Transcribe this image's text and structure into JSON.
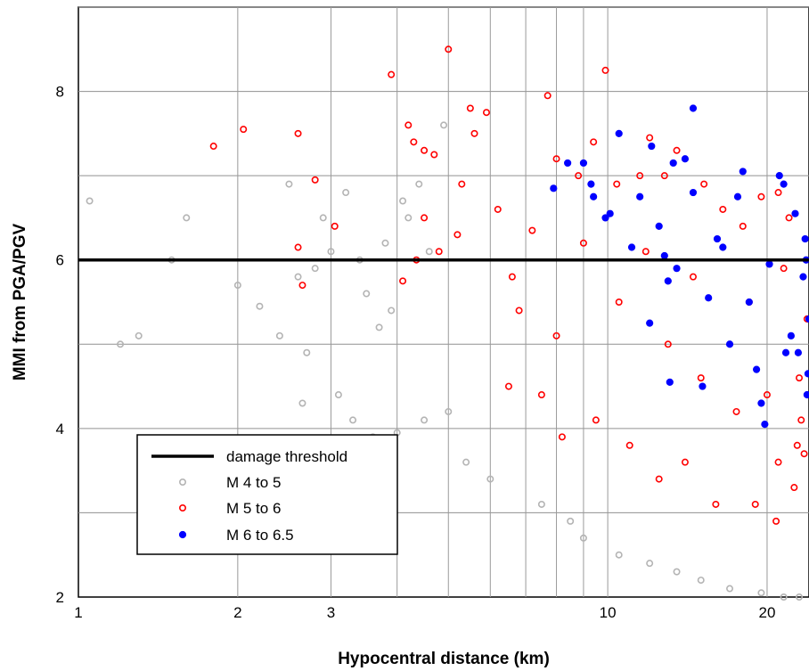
{
  "chart_data": {
    "type": "scatter",
    "title": "",
    "xlabel": "Hypocentral distance (km)",
    "ylabel": "MMI from PGA/PGV",
    "x_scale": "log",
    "xlim": [
      1,
      24
    ],
    "ylim": [
      2,
      9
    ],
    "x_ticks": [
      1,
      2,
      3,
      10,
      20
    ],
    "x_tick_labels": [
      "1",
      "2",
      "3",
      "10",
      "20"
    ],
    "y_ticks": [
      2,
      4,
      6,
      8
    ],
    "y_tick_labels": [
      "2",
      "4",
      "6",
      "8"
    ],
    "grid": true,
    "legend_position": "bottom-left",
    "threshold": {
      "name": "damage threshold",
      "y": 6,
      "color": "#000000"
    },
    "series": [
      {
        "name": "M 4 to 5",
        "color": "#b4b4b4",
        "marker": "open-circle",
        "points": [
          [
            1.05,
            6.7
          ],
          [
            1.2,
            5.0
          ],
          [
            1.3,
            5.1
          ],
          [
            1.5,
            6.0
          ],
          [
            1.6,
            6.5
          ],
          [
            2.0,
            5.7
          ],
          [
            2.2,
            5.45
          ],
          [
            2.4,
            5.1
          ],
          [
            2.5,
            6.9
          ],
          [
            2.6,
            5.8
          ],
          [
            2.8,
            5.9
          ],
          [
            2.9,
            6.5
          ],
          [
            3.0,
            6.1
          ],
          [
            3.2,
            6.8
          ],
          [
            3.4,
            6.0
          ],
          [
            3.5,
            5.6
          ],
          [
            3.7,
            5.2
          ],
          [
            3.9,
            5.4
          ],
          [
            4.2,
            6.5
          ],
          [
            4.4,
            6.9
          ],
          [
            4.6,
            6.1
          ],
          [
            4.9,
            7.6
          ],
          [
            5.0,
            4.2
          ],
          [
            2.7,
            4.9
          ],
          [
            3.1,
            4.4
          ],
          [
            3.3,
            4.1
          ],
          [
            3.6,
            3.9
          ],
          [
            4.0,
            3.95
          ],
          [
            4.5,
            4.1
          ],
          [
            5.4,
            3.6
          ],
          [
            6.0,
            3.4
          ],
          [
            7.5,
            3.1
          ],
          [
            8.5,
            2.9
          ],
          [
            9.0,
            2.7
          ],
          [
            10.5,
            2.5
          ],
          [
            12.0,
            2.4
          ],
          [
            13.5,
            2.3
          ],
          [
            15.0,
            2.2
          ],
          [
            17.0,
            2.1
          ],
          [
            19.5,
            2.05
          ],
          [
            21.5,
            2.0
          ],
          [
            23.0,
            2.0
          ],
          [
            2.65,
            4.3
          ],
          [
            4.1,
            6.7
          ],
          [
            3.8,
            6.2
          ]
        ]
      },
      {
        "name": "M 5 to 6",
        "color": "#ff0000",
        "marker": "open-circle",
        "points": [
          [
            1.8,
            7.35
          ],
          [
            2.05,
            7.55
          ],
          [
            2.6,
            7.5
          ],
          [
            2.8,
            6.95
          ],
          [
            2.6,
            6.15
          ],
          [
            2.65,
            5.7
          ],
          [
            3.05,
            6.4
          ],
          [
            3.9,
            8.2
          ],
          [
            4.2,
            7.6
          ],
          [
            4.3,
            7.4
          ],
          [
            4.5,
            7.3
          ],
          [
            4.7,
            7.25
          ],
          [
            5.0,
            8.5
          ],
          [
            5.5,
            7.8
          ],
          [
            5.9,
            7.75
          ],
          [
            5.6,
            7.5
          ],
          [
            7.7,
            7.95
          ],
          [
            9.9,
            8.25
          ],
          [
            4.1,
            5.75
          ],
          [
            4.35,
            6.0
          ],
          [
            4.5,
            6.5
          ],
          [
            4.8,
            6.1
          ],
          [
            5.3,
            6.9
          ],
          [
            6.2,
            6.6
          ],
          [
            6.6,
            5.8
          ],
          [
            7.2,
            6.35
          ],
          [
            8.0,
            7.2
          ],
          [
            8.8,
            7.0
          ],
          [
            9.4,
            7.4
          ],
          [
            10.4,
            6.9
          ],
          [
            11.5,
            7.0
          ],
          [
            12.0,
            7.45
          ],
          [
            12.8,
            7.0
          ],
          [
            13.5,
            7.3
          ],
          [
            15.2,
            6.9
          ],
          [
            16.5,
            6.6
          ],
          [
            18.0,
            6.4
          ],
          [
            19.5,
            6.75
          ],
          [
            21.0,
            6.8
          ],
          [
            22.0,
            6.5
          ],
          [
            6.5,
            4.5
          ],
          [
            7.5,
            4.4
          ],
          [
            8.2,
            3.9
          ],
          [
            9.5,
            4.1
          ],
          [
            11.0,
            3.8
          ],
          [
            12.5,
            3.4
          ],
          [
            14.0,
            3.6
          ],
          [
            16.0,
            3.1
          ],
          [
            19.0,
            3.1
          ],
          [
            20.8,
            2.9
          ],
          [
            22.5,
            3.3
          ],
          [
            23.5,
            3.7
          ],
          [
            23.0,
            4.6
          ],
          [
            23.8,
            5.3
          ],
          [
            8.0,
            5.1
          ],
          [
            10.5,
            5.5
          ],
          [
            13.0,
            5.0
          ],
          [
            15.0,
            4.6
          ],
          [
            17.5,
            4.2
          ],
          [
            20.0,
            4.4
          ],
          [
            5.2,
            6.3
          ],
          [
            6.8,
            5.4
          ],
          [
            9.0,
            6.2
          ],
          [
            11.8,
            6.1
          ],
          [
            14.5,
            5.8
          ],
          [
            18.5,
            5.5
          ],
          [
            21.5,
            5.9
          ],
          [
            23.2,
            4.1
          ],
          [
            22.8,
            3.8
          ],
          [
            21.0,
            3.6
          ]
        ]
      },
      {
        "name": "M 6 to 6.5",
        "color": "#0000ff",
        "marker": "filled-circle",
        "points": [
          [
            7.9,
            6.85
          ],
          [
            8.4,
            7.15
          ],
          [
            9.0,
            7.15
          ],
          [
            9.3,
            6.9
          ],
          [
            9.4,
            6.75
          ],
          [
            9.9,
            6.5
          ],
          [
            10.1,
            6.55
          ],
          [
            10.5,
            7.5
          ],
          [
            11.1,
            6.15
          ],
          [
            11.5,
            6.75
          ],
          [
            12.1,
            7.35
          ],
          [
            12.5,
            6.4
          ],
          [
            12.8,
            6.05
          ],
          [
            13.0,
            5.75
          ],
          [
            13.3,
            7.15
          ],
          [
            13.5,
            5.9
          ],
          [
            14.0,
            7.2
          ],
          [
            14.5,
            7.8
          ],
          [
            14.5,
            6.8
          ],
          [
            15.5,
            5.55
          ],
          [
            16.1,
            6.25
          ],
          [
            16.5,
            6.15
          ],
          [
            17.0,
            5.0
          ],
          [
            17.6,
            6.75
          ],
          [
            18.0,
            7.05
          ],
          [
            18.5,
            5.5
          ],
          [
            19.1,
            4.7
          ],
          [
            19.5,
            4.3
          ],
          [
            20.2,
            5.95
          ],
          [
            21.1,
            7.0
          ],
          [
            21.5,
            6.9
          ],
          [
            22.2,
            5.1
          ],
          [
            22.6,
            6.55
          ],
          [
            22.9,
            4.9
          ],
          [
            23.4,
            5.8
          ],
          [
            23.6,
            6.25
          ],
          [
            23.8,
            4.4
          ],
          [
            24.0,
            5.3
          ],
          [
            23.9,
            4.65
          ],
          [
            23.7,
            6.0
          ],
          [
            12.0,
            5.25
          ],
          [
            13.1,
            4.55
          ],
          [
            15.1,
            4.5
          ],
          [
            19.8,
            4.05
          ],
          [
            21.7,
            4.9
          ]
        ]
      }
    ]
  }
}
